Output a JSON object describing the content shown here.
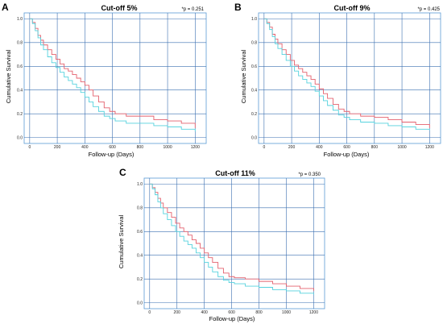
{
  "colors": {
    "frame": "#5b9bd5",
    "grid": "#3b6fb0",
    "series_red": "#e4606d",
    "series_cyan": "#55d2de"
  },
  "chart_data": [
    {
      "type": "line",
      "panel": "A",
      "title": "Cut-off 5%",
      "pvalue": "*p = 0.251",
      "xlabel": "Follow-up (Days)",
      "ylabel": "Cumulative Survival",
      "xlim": [
        -40,
        1280
      ],
      "ylim": [
        -0.05,
        1.05
      ],
      "xticks": [
        0,
        200,
        400,
        600,
        800,
        1000,
        1200
      ],
      "yticks": [
        0.0,
        0.2,
        0.4,
        0.6,
        0.8,
        1.0
      ],
      "yticklabels": [
        "0.0",
        "0.2",
        "0.4",
        "0.6",
        "0.8",
        "1.0"
      ],
      "series": [
        {
          "color": "#e4606d",
          "x": [
            0,
            20,
            40,
            60,
            80,
            100,
            130,
            160,
            190,
            220,
            250,
            280,
            310,
            340,
            370,
            400,
            430,
            460,
            500,
            540,
            580,
            620,
            700,
            800,
            900,
            1000,
            1100,
            1200
          ],
          "y": [
            1.0,
            0.97,
            0.92,
            0.86,
            0.82,
            0.78,
            0.74,
            0.7,
            0.66,
            0.62,
            0.58,
            0.56,
            0.53,
            0.5,
            0.47,
            0.44,
            0.4,
            0.35,
            0.3,
            0.25,
            0.22,
            0.2,
            0.18,
            0.18,
            0.15,
            0.14,
            0.12,
            0.08
          ]
        },
        {
          "color": "#55d2de",
          "x": [
            0,
            20,
            40,
            60,
            80,
            100,
            130,
            160,
            190,
            220,
            250,
            280,
            310,
            340,
            370,
            400,
            430,
            460,
            500,
            540,
            580,
            620,
            700,
            800,
            900,
            1000,
            1100,
            1200
          ],
          "y": [
            1.0,
            0.96,
            0.9,
            0.84,
            0.78,
            0.74,
            0.68,
            0.63,
            0.59,
            0.55,
            0.51,
            0.48,
            0.45,
            0.42,
            0.38,
            0.34,
            0.3,
            0.26,
            0.22,
            0.18,
            0.16,
            0.14,
            0.12,
            0.12,
            0.1,
            0.09,
            0.07,
            0.05
          ]
        }
      ]
    },
    {
      "type": "line",
      "panel": "B",
      "title": "Cut-off 9%",
      "pvalue": "*p = 0.425",
      "xlabel": "Follow-up (Days)",
      "ylabel": "Cumulative Survival",
      "xlim": [
        -40,
        1280
      ],
      "ylim": [
        -0.05,
        1.05
      ],
      "xticks": [
        0,
        200,
        400,
        600,
        800,
        1000,
        1200
      ],
      "yticks": [
        0.0,
        0.2,
        0.4,
        0.6,
        0.8,
        1.0
      ],
      "yticklabels": [
        "0.0",
        "0.2",
        "0.4",
        "0.6",
        "0.8",
        "1.0"
      ],
      "series": [
        {
          "color": "#e4606d",
          "x": [
            0,
            20,
            40,
            60,
            80,
            100,
            130,
            160,
            190,
            220,
            250,
            280,
            310,
            340,
            370,
            400,
            430,
            460,
            500,
            540,
            580,
            620,
            700,
            800,
            900,
            1000,
            1100,
            1200
          ],
          "y": [
            1.0,
            0.97,
            0.93,
            0.87,
            0.83,
            0.79,
            0.74,
            0.7,
            0.65,
            0.61,
            0.58,
            0.55,
            0.52,
            0.49,
            0.45,
            0.41,
            0.37,
            0.33,
            0.28,
            0.24,
            0.22,
            0.2,
            0.18,
            0.17,
            0.15,
            0.13,
            0.11,
            0.08
          ]
        },
        {
          "color": "#55d2de",
          "x": [
            0,
            20,
            40,
            60,
            80,
            100,
            130,
            160,
            190,
            220,
            250,
            280,
            310,
            340,
            370,
            400,
            430,
            460,
            500,
            540,
            580,
            620,
            700,
            800,
            900,
            1000,
            1100,
            1200
          ],
          "y": [
            1.0,
            0.96,
            0.91,
            0.85,
            0.79,
            0.75,
            0.7,
            0.65,
            0.6,
            0.56,
            0.52,
            0.49,
            0.46,
            0.43,
            0.39,
            0.35,
            0.31,
            0.27,
            0.23,
            0.19,
            0.17,
            0.15,
            0.13,
            0.12,
            0.1,
            0.09,
            0.07,
            0.06
          ]
        }
      ]
    },
    {
      "type": "line",
      "panel": "C",
      "title": "Cut-off 11%",
      "pvalue": "*p = 0.350",
      "xlabel": "Follow-up (Days)",
      "ylabel": "Cumulative Survival",
      "xlim": [
        -40,
        1280
      ],
      "ylim": [
        -0.05,
        1.05
      ],
      "xticks": [
        0,
        200,
        400,
        600,
        800,
        1000,
        1200
      ],
      "yticks": [
        0.0,
        0.2,
        0.4,
        0.6,
        0.8,
        1.0
      ],
      "yticklabels": [
        "0.0",
        "0.2",
        "0.4",
        "0.6",
        "0.8",
        "1.0"
      ],
      "series": [
        {
          "color": "#e4606d",
          "x": [
            0,
            20,
            40,
            60,
            80,
            100,
            130,
            160,
            190,
            220,
            250,
            280,
            310,
            340,
            370,
            400,
            430,
            460,
            500,
            540,
            580,
            620,
            700,
            800,
            900,
            1000,
            1100,
            1200
          ],
          "y": [
            1.0,
            0.97,
            0.93,
            0.88,
            0.84,
            0.8,
            0.76,
            0.72,
            0.67,
            0.63,
            0.6,
            0.57,
            0.53,
            0.5,
            0.46,
            0.42,
            0.38,
            0.34,
            0.29,
            0.25,
            0.22,
            0.21,
            0.2,
            0.18,
            0.16,
            0.14,
            0.12,
            0.1
          ]
        },
        {
          "color": "#55d2de",
          "x": [
            0,
            20,
            40,
            60,
            80,
            100,
            130,
            160,
            190,
            220,
            250,
            280,
            310,
            340,
            370,
            400,
            430,
            460,
            500,
            540,
            580,
            620,
            700,
            800,
            900,
            1000,
            1100,
            1200
          ],
          "y": [
            1.0,
            0.96,
            0.91,
            0.85,
            0.8,
            0.75,
            0.7,
            0.65,
            0.6,
            0.56,
            0.52,
            0.49,
            0.46,
            0.42,
            0.38,
            0.34,
            0.3,
            0.26,
            0.22,
            0.19,
            0.17,
            0.16,
            0.14,
            0.13,
            0.11,
            0.1,
            0.08,
            0.07
          ]
        }
      ]
    }
  ]
}
